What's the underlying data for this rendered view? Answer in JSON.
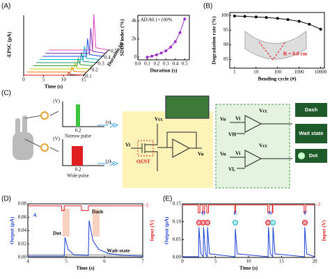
{
  "panels": [
    "(A)",
    "(B)",
    "(C)",
    "(D)",
    "(E)"
  ],
  "chart_data": [
    {
      "type": "waterfall",
      "x": [
        0,
        11,
        11.3,
        11.8,
        15
      ],
      "xlim": [
        0,
        15
      ],
      "xticks": [
        0,
        5,
        10,
        15
      ],
      "ylim": [
        0,
        1
      ],
      "xlabel": "Time (s)",
      "ylabel": "-EPSC (μA)",
      "depth_label": "Duration (s)",
      "depth_ticks": [
        0.1,
        0.2,
        0.3,
        0.4,
        0.5
      ],
      "series": [
        {
          "color": "#e41a1c",
          "values": [
            0,
            0,
            0.05,
            0.01,
            0
          ]
        },
        {
          "color": "#ff7f00",
          "values": [
            0,
            0,
            0.08,
            0.01,
            0
          ]
        },
        {
          "color": "#c8c800",
          "values": [
            0,
            0,
            0.1,
            0.01,
            0
          ]
        },
        {
          "color": "#33a02c",
          "values": [
            0,
            0,
            0.13,
            0.02,
            0
          ]
        },
        {
          "color": "#1b9e77",
          "values": [
            0,
            0,
            0.17,
            0.02,
            0
          ]
        },
        {
          "color": "#00bcd4",
          "values": [
            0,
            0,
            0.22,
            0.02,
            0
          ]
        },
        {
          "color": "#1f4fe0",
          "values": [
            0,
            0,
            0.3,
            0.03,
            0
          ]
        },
        {
          "color": "#7b2fbf",
          "values": [
            0,
            0,
            0.42,
            0.03,
            0
          ]
        },
        {
          "color": "#e040c0",
          "values": [
            0,
            0,
            0.6,
            0.04,
            0
          ]
        }
      ]
    },
    {
      "type": "line",
      "title": "AD/A0.1×100%",
      "x": [
        0.1,
        0.15,
        0.2,
        0.25,
        0.3,
        0.35,
        0.4,
        0.45,
        0.5
      ],
      "xlim": [
        0,
        0.55
      ],
      "xticks": [
        {
          "value": 0,
          "label": "0.0"
        },
        0.1,
        0.2,
        0.3,
        0.4,
        0.5
      ],
      "ylim": [
        -300,
        4600
      ],
      "yticks": [
        0,
        {
          "value": 2000,
          "label": "2k"
        },
        {
          "value": 4000,
          "label": "4k"
        }
      ],
      "xlabel": "Duration (s)",
      "ylabel": "SDDP index (%)",
      "series": [
        {
          "color": "#9b30c8",
          "marker": true,
          "values": [
            0,
            100,
            250,
            450,
            700,
            1100,
            1700,
            2700,
            4200
          ]
        }
      ]
    },
    {
      "type": "line",
      "x": [
        1,
        3,
        10,
        30,
        100,
        300,
        1000,
        3000,
        10000
      ],
      "xlog": true,
      "xlim": [
        0.6,
        15000
      ],
      "xticks": [
        1,
        10,
        100,
        1000,
        10000
      ],
      "ylim": [
        82,
        101
      ],
      "yticks": [
        85,
        90,
        95,
        100
      ],
      "xlabel": "Bending cycle (#)",
      "ylabel": "Degradation rate (%)",
      "annotations": [
        "R = 0.8 cm"
      ],
      "series": [
        {
          "color": "#000000",
          "marker": true,
          "values": [
            99.8,
            99.7,
            99.5,
            99.3,
            99.0,
            98.6,
            98.0,
            97.0,
            95.3
          ]
        }
      ]
    },
    {
      "type": "line",
      "xlim": [
        4,
        7
      ],
      "xticks": [
        4,
        5,
        6,
        7
      ],
      "ylim": [
        0,
        0.08
      ],
      "yticks": [
        {
          "value": 0,
          "label": "0.00"
        },
        {
          "value": 0.02,
          "label": "0.02"
        },
        {
          "value": 0.04,
          "label": "0.04"
        },
        {
          "value": 0.06,
          "label": "0.06"
        },
        {
          "value": 0.08,
          "label": "0.08"
        }
      ],
      "y2lim": [
        -80,
        0
      ],
      "y2ticks": [
        -3
      ],
      "xlabel": "Time (s)",
      "ylabel": "Output (μA)",
      "y2label": "Input (V)",
      "annotations": [
        "A",
        "Dot",
        "Dash",
        "Wait-state"
      ],
      "series": [
        {
          "color": "#1a3fd6",
          "x": [
            4,
            4.95,
            4.97,
            5.05,
            5.2,
            5.5,
            5.58,
            5.6,
            5.7,
            5.85,
            6.1,
            6.5,
            7
          ],
          "values": [
            0.002,
            0.002,
            0.03,
            0.012,
            0.004,
            0.003,
            0.003,
            0.055,
            0.025,
            0.012,
            0.006,
            0.003,
            0.002
          ]
        },
        {
          "color": "#e41a1c",
          "axis": "y2",
          "x": [
            4,
            4.88,
            4.88,
            4.95,
            4.95,
            5.4,
            5.4,
            5.58,
            5.58,
            7
          ],
          "values": [
            -3,
            -3,
            -10,
            -10,
            -3,
            -3,
            -10,
            -10,
            -3,
            -3
          ]
        }
      ]
    },
    {
      "type": "line",
      "xlim": [
        0,
        20
      ],
      "xticks": [
        0,
        5,
        10,
        15,
        20
      ],
      "ylim": [
        0,
        0.15
      ],
      "yticks": [
        {
          "value": 0,
          "label": "0.00"
        },
        {
          "value": 0.05,
          "label": "0.05"
        },
        {
          "value": 0.1,
          "label": "0.10"
        },
        {
          "value": 0.15,
          "label": "0.15"
        }
      ],
      "y2lim": [
        -150,
        0
      ],
      "y2ticks": [
        -3
      ],
      "xlabel": "Time (s)",
      "ylabel": "Output (μA)",
      "y2label": "Input (V)",
      "annotations": [
        "O",
        "E",
        "N",
        "T"
      ],
      "series": [
        {
          "color": "#1a3fd6",
          "x": [
            0,
            2.45,
            2.5,
            2.8,
            3.15,
            3.2,
            3.5,
            3.75,
            3.8,
            4.1,
            7.95,
            8.0,
            8.3,
            12.95,
            13.0,
            13.3,
            13.65,
            13.7,
            14.0,
            18.45,
            18.5,
            18.8,
            20
          ],
          "values": [
            0.002,
            0.002,
            0.085,
            0.01,
            0.002,
            0.085,
            0.01,
            0.002,
            0.085,
            0.01,
            0.002,
            0.08,
            0.01,
            0.002,
            0.085,
            0.01,
            0.002,
            0.085,
            0.01,
            0.002,
            0.085,
            0.01,
            0.002
          ]
        },
        {
          "color": "#e41a1c",
          "axis": "y2",
          "x": [
            0,
            2.4,
            2.4,
            2.65,
            2.65,
            3.1,
            3.1,
            3.35,
            3.35,
            3.7,
            3.7,
            3.95,
            3.95,
            7.95,
            7.95,
            8.03,
            8.03,
            12.9,
            12.9,
            13.15,
            13.15,
            13.6,
            13.6,
            13.68,
            13.68,
            18.4,
            18.4,
            18.65,
            18.65,
            20
          ],
          "values": [
            -3,
            -3,
            -25,
            -25,
            -3,
            -3,
            -25,
            -25,
            -3,
            -3,
            -25,
            -25,
            -3,
            -3,
            -25,
            -25,
            -3,
            -3,
            -25,
            -25,
            -3,
            -3,
            -25,
            -25,
            -3,
            -3,
            -25,
            -25,
            -3,
            -3
          ]
        }
      ]
    }
  ],
  "diagram": {
    "pulses": [
      {
        "v_unit": "(V)",
        "t": "0.2",
        "t_unit": "(s)",
        "label": "Narrow pulse"
      },
      {
        "v_unit": "(V)",
        "t": "0.2",
        "t_unit": "(s)",
        "label": "Wide pulse"
      }
    ],
    "transistor": "OENT",
    "circuit_labels": [
      "Vcc",
      "Vi",
      "Vo",
      "Vo",
      "Vi",
      "VH",
      "Vcc",
      "Vo",
      "Vi",
      "VL",
      "Vcc"
    ],
    "outputs": [
      "Dash",
      "Wait state",
      "Dot"
    ]
  }
}
